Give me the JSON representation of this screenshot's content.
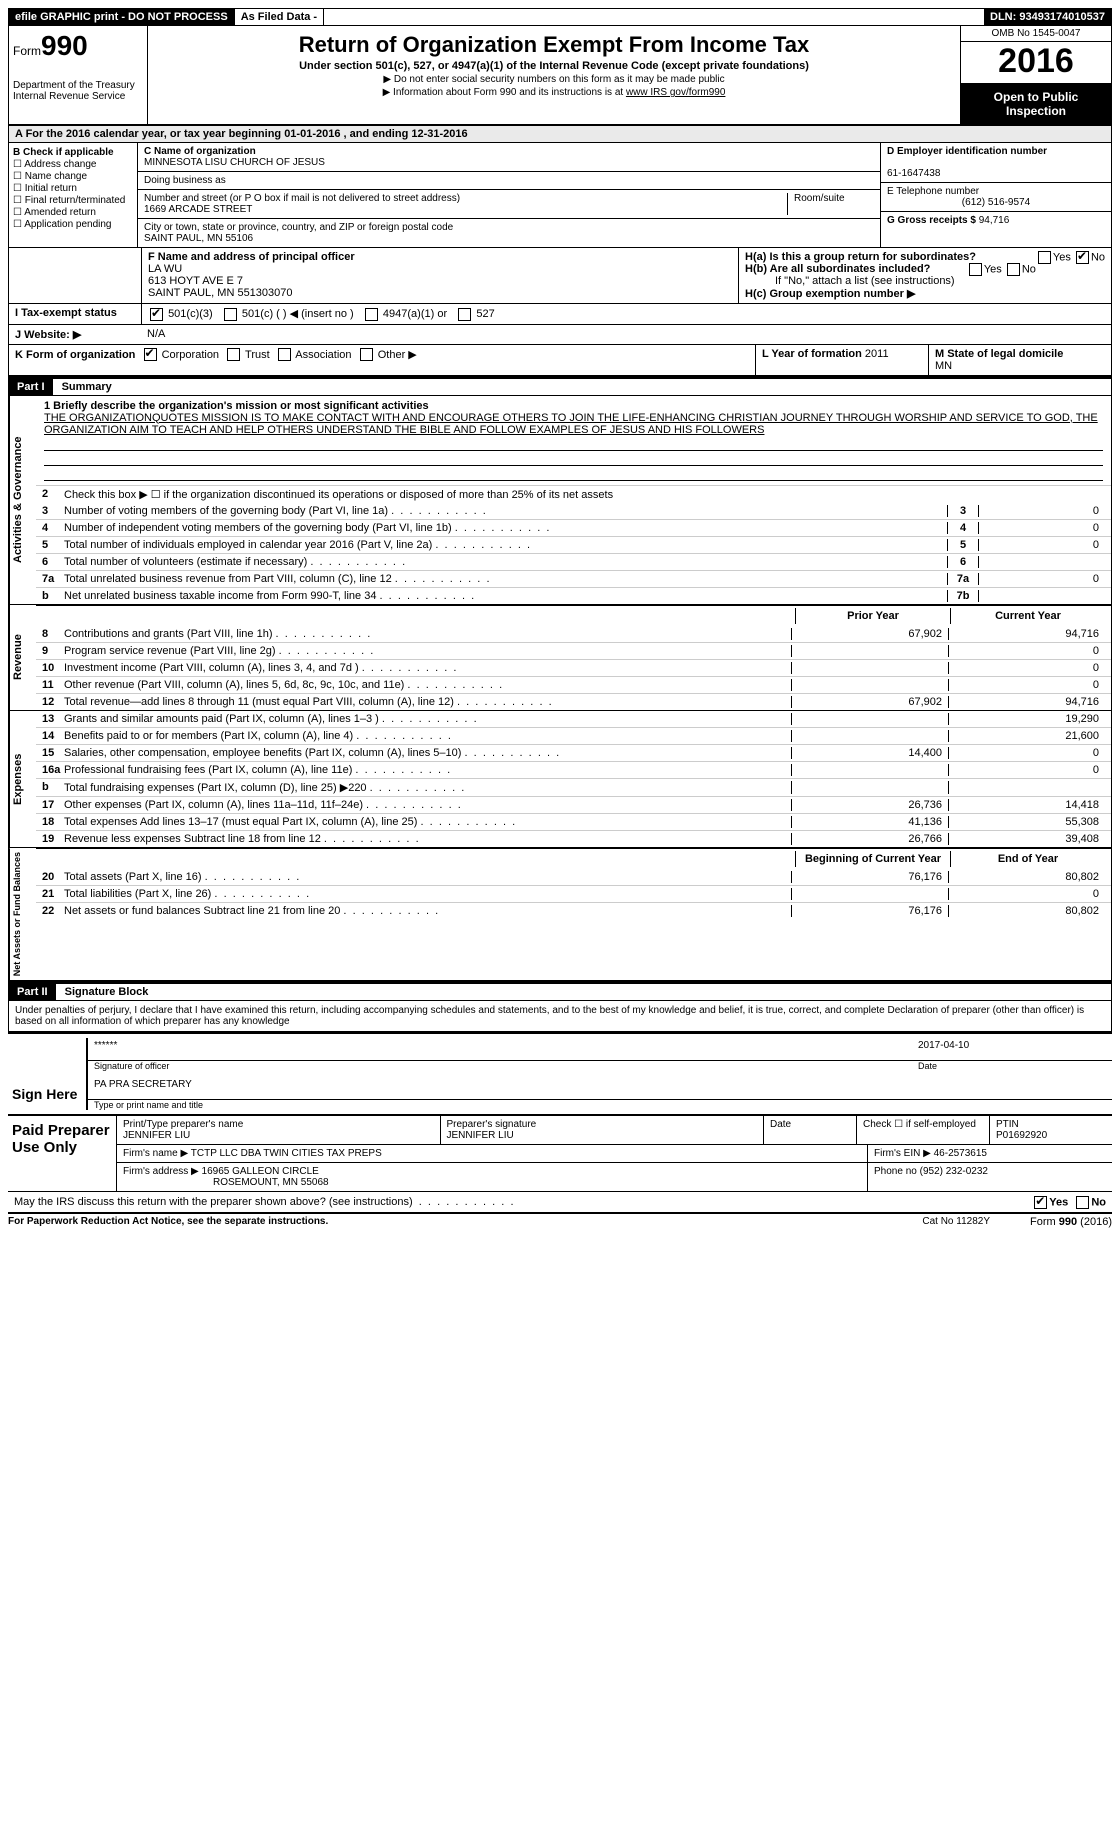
{
  "topbar": {
    "efile": "efile GRAPHIC print - DO NOT PROCESS",
    "asfiled": "As Filed Data -",
    "dln_label": "DLN:",
    "dln": "93493174010537"
  },
  "header": {
    "form_word": "Form",
    "form_no": "990",
    "dept1": "Department of the Treasury",
    "dept2": "Internal Revenue Service",
    "title": "Return of Organization Exempt From Income Tax",
    "subtitle": "Under section 501(c), 527, or 4947(a)(1) of the Internal Revenue Code (except private foundations)",
    "note1": "▶ Do not enter social security numbers on this form as it may be made public",
    "note2_pre": "▶ Information about Form 990 and its instructions is at ",
    "note2_link": "www IRS gov/form990",
    "omb": "OMB No 1545-0047",
    "year": "2016",
    "open": "Open to Public Inspection"
  },
  "rowA": "A  For the 2016 calendar year, or tax year beginning 01-01-2016  , and ending 12-31-2016",
  "B": {
    "title": "B Check if applicable",
    "items": [
      "Address change",
      "Name change",
      "Initial return",
      "Final return/terminated",
      "Amended return",
      "Application pending"
    ]
  },
  "C": {
    "label": "C Name of organization",
    "name": "MINNESOTA LISU CHURCH OF JESUS",
    "dba_label": "Doing business as",
    "street_label": "Number and street (or P O  box if mail is not delivered to street address)",
    "room_label": "Room/suite",
    "street": "1669 ARCADE STREET",
    "city_label": "City or town, state or province, country, and ZIP or foreign postal code",
    "city": "SAINT PAUL, MN  55106"
  },
  "D": {
    "label": "D Employer identification number",
    "val": "61-1647438"
  },
  "E": {
    "label": "E Telephone number",
    "val": "(612) 516-9574"
  },
  "G": {
    "label": "G Gross receipts $",
    "val": "94,716"
  },
  "F": {
    "label": "F  Name and address of principal officer",
    "name": "LA WU",
    "addr1": "613 HOYT AVE E 7",
    "addr2": "SAINT PAUL, MN  551303070"
  },
  "H": {
    "a": "H(a)  Is this a group return for subordinates?",
    "b": "H(b)  Are all subordinates included?",
    "bnote": "If \"No,\" attach a list  (see instructions)",
    "c": "H(c)  Group exemption number ▶"
  },
  "I": {
    "label": "I  Tax-exempt status",
    "opts": [
      "501(c)(3)",
      "501(c) (  ) ◀ (insert no )",
      "4947(a)(1) or",
      "527"
    ]
  },
  "J": {
    "label": "J  Website: ▶",
    "val": "N/A"
  },
  "K": {
    "label": "K Form of organization",
    "opts": [
      "Corporation",
      "Trust",
      "Association",
      "Other ▶"
    ]
  },
  "L": {
    "label": "L Year of formation",
    "val": "2011"
  },
  "M": {
    "label": "M State of legal domicile",
    "val": "MN"
  },
  "partI": {
    "hdr": "Part I",
    "title": "Summary",
    "mission_label": "1 Briefly describe the organization's mission or most significant activities",
    "mission": "THE ORGANIZATIONQUOTES MISSION IS TO MAKE CONTACT WITH AND ENCOURAGE OTHERS TO JOIN THE LIFE-ENHANCING CHRISTIAN JOURNEY  THROUGH WORSHIP AND SERVICE TO GOD, THE ORGANIZATION AIM TO TEACH AND HELP OTHERS UNDERSTAND THE BIBLE AND FOLLOW EXAMPLES OF JESUS AND HIS FOLLOWERS",
    "line2": "Check this box ▶ ☐ if the organization discontinued its operations or disposed of more than 25% of its net assets",
    "gov_lines": [
      {
        "n": "3",
        "t": "Number of voting members of the governing body (Part VI, line 1a)",
        "box": "3",
        "v": "0"
      },
      {
        "n": "4",
        "t": "Number of independent voting members of the governing body (Part VI, line 1b)",
        "box": "4",
        "v": "0"
      },
      {
        "n": "5",
        "t": "Total number of individuals employed in calendar year 2016 (Part V, line 2a)",
        "box": "5",
        "v": "0"
      },
      {
        "n": "6",
        "t": "Total number of volunteers (estimate if necessary)",
        "box": "6",
        "v": ""
      },
      {
        "n": "7a",
        "t": "Total unrelated business revenue from Part VIII, column (C), line 12",
        "box": "7a",
        "v": "0"
      },
      {
        "n": "b",
        "t": "Net unrelated business taxable income from Form 990-T, line 34",
        "box": "7b",
        "v": ""
      }
    ],
    "col_hdr_prior": "Prior Year",
    "col_hdr_curr": "Current Year",
    "rev_lines": [
      {
        "n": "8",
        "t": "Contributions and grants (Part VIII, line 1h)",
        "p": "67,902",
        "c": "94,716"
      },
      {
        "n": "9",
        "t": "Program service revenue (Part VIII, line 2g)",
        "p": "",
        "c": "0"
      },
      {
        "n": "10",
        "t": "Investment income (Part VIII, column (A), lines 3, 4, and 7d )",
        "p": "",
        "c": "0"
      },
      {
        "n": "11",
        "t": "Other revenue (Part VIII, column (A), lines 5, 6d, 8c, 9c, 10c, and 11e)",
        "p": "",
        "c": "0"
      },
      {
        "n": "12",
        "t": "Total revenue—add lines 8 through 11 (must equal Part VIII, column (A), line 12)",
        "p": "67,902",
        "c": "94,716"
      }
    ],
    "exp_lines": [
      {
        "n": "13",
        "t": "Grants and similar amounts paid (Part IX, column (A), lines 1–3 )",
        "p": "",
        "c": "19,290"
      },
      {
        "n": "14",
        "t": "Benefits paid to or for members (Part IX, column (A), line 4)",
        "p": "",
        "c": "21,600"
      },
      {
        "n": "15",
        "t": "Salaries, other compensation, employee benefits (Part IX, column (A), lines 5–10)",
        "p": "14,400",
        "c": "0"
      },
      {
        "n": "16a",
        "t": "Professional fundraising fees (Part IX, column (A), line 11e)",
        "p": "",
        "c": "0"
      },
      {
        "n": "b",
        "t": "Total fundraising expenses (Part IX, column (D), line 25) ▶220",
        "p": "",
        "c": ""
      },
      {
        "n": "17",
        "t": "Other expenses (Part IX, column (A), lines 11a–11d, 11f–24e)",
        "p": "26,736",
        "c": "14,418"
      },
      {
        "n": "18",
        "t": "Total expenses  Add lines 13–17 (must equal Part IX, column (A), line 25)",
        "p": "41,136",
        "c": "55,308"
      },
      {
        "n": "19",
        "t": "Revenue less expenses  Subtract line 18 from line 12",
        "p": "26,766",
        "c": "39,408"
      }
    ],
    "na_hdr_begin": "Beginning of Current Year",
    "na_hdr_end": "End of Year",
    "na_lines": [
      {
        "n": "20",
        "t": "Total assets (Part X, line 16)",
        "p": "76,176",
        "c": "80,802"
      },
      {
        "n": "21",
        "t": "Total liabilities (Part X, line 26)",
        "p": "",
        "c": "0"
      },
      {
        "n": "22",
        "t": "Net assets or fund balances  Subtract line 21 from line 20",
        "p": "76,176",
        "c": "80,802"
      }
    ],
    "vlabels": {
      "gov": "Activities & Governance",
      "rev": "Revenue",
      "exp": "Expenses",
      "na": "Net Assets or Fund Balances"
    }
  },
  "partII": {
    "hdr": "Part II",
    "title": "Signature Block",
    "decl": "Under penalties of perjury, I declare that I have examined this return, including accompanying schedules and statements, and to the best of my knowledge and belief, it is true, correct, and complete  Declaration of preparer (other than officer) is based on all information of which preparer has any knowledge",
    "sign_here": "Sign Here",
    "sig_stars": "******",
    "sig_of": "Signature of officer",
    "date": "2017-04-10",
    "date_lbl": "Date",
    "name_title": "PA PRA SECRETARY",
    "name_lbl": "Type or print name and title",
    "paid": "Paid Preparer Use Only",
    "prep_name_lbl": "Print/Type preparer's name",
    "prep_name": "JENNIFER LIU",
    "prep_sig_lbl": "Preparer's signature",
    "prep_sig": "JENNIFER LIU",
    "prep_date_lbl": "Date",
    "self_emp": "Check ☐ if self-employed",
    "ptin_lbl": "PTIN",
    "ptin": "P01692920",
    "firm_name_lbl": "Firm's name    ▶",
    "firm_name": "TCTP LLC DBA TWIN CITIES TAX PREPS",
    "firm_ein_lbl": "Firm's EIN ▶",
    "firm_ein": "46-2573615",
    "firm_addr_lbl": "Firm's address ▶",
    "firm_addr1": "16965 GALLEON CIRCLE",
    "firm_addr2": "ROSEMOUNT, MN  55068",
    "phone_lbl": "Phone no",
    "phone": "(952) 232-0232",
    "discuss": "May the IRS discuss this return with the preparer shown above? (see instructions)"
  },
  "footer": {
    "l": "For Paperwork Reduction Act Notice, see the separate instructions.",
    "m": "Cat  No  11282Y",
    "r": "Form 990 (2016)"
  },
  "yn": {
    "yes": "Yes",
    "no": "No"
  }
}
